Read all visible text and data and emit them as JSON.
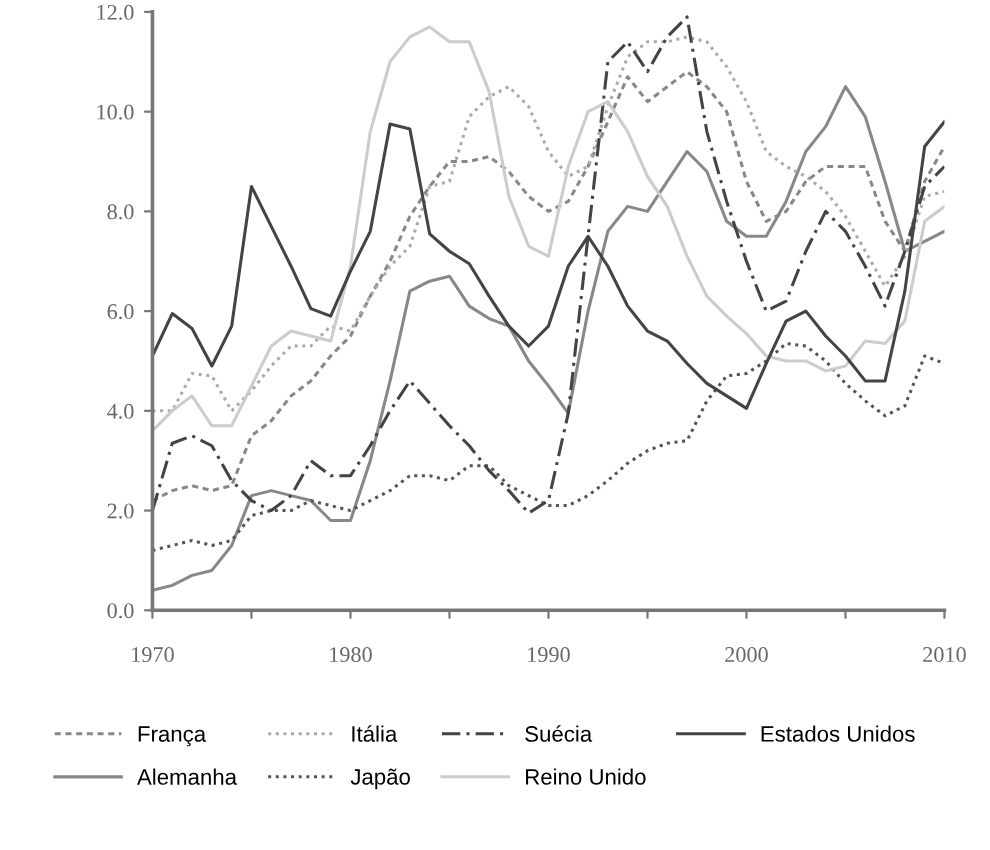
{
  "chart_data": {
    "type": "line",
    "x": [
      1970,
      1971,
      1972,
      1973,
      1974,
      1975,
      1976,
      1977,
      1978,
      1979,
      1980,
      1981,
      1982,
      1983,
      1984,
      1985,
      1986,
      1987,
      1988,
      1989,
      1990,
      1991,
      1992,
      1993,
      1994,
      1995,
      1996,
      1997,
      1998,
      1999,
      2000,
      2001,
      2002,
      2003,
      2004,
      2005,
      2006,
      2007,
      2008,
      2009,
      2010
    ],
    "series": [
      {
        "name": "França",
        "color": "#888888",
        "line_style": "dashed",
        "values": [
          2.2,
          2.4,
          2.5,
          2.4,
          2.5,
          3.5,
          3.8,
          4.3,
          4.6,
          5.1,
          5.5,
          6.3,
          7.0,
          7.9,
          8.5,
          9.0,
          9.0,
          9.1,
          8.8,
          8.3,
          8.0,
          8.2,
          8.9,
          9.8,
          10.7,
          10.2,
          10.5,
          10.8,
          10.5,
          10.0,
          8.6,
          7.8,
          8.0,
          8.6,
          8.9,
          8.9,
          8.9,
          7.8,
          7.2,
          8.6,
          9.3
        ]
      },
      {
        "name": "Alemanha",
        "color": "#888888",
        "line_style": "solid",
        "values": [
          0.4,
          0.5,
          0.7,
          0.8,
          1.3,
          2.3,
          2.4,
          2.3,
          2.2,
          1.8,
          1.8,
          3.0,
          4.6,
          6.4,
          6.6,
          6.7,
          6.1,
          5.85,
          5.7,
          5.0,
          4.5,
          3.95,
          6.0,
          7.6,
          8.1,
          8.0,
          8.6,
          9.2,
          8.8,
          7.8,
          7.5,
          7.5,
          8.2,
          9.2,
          9.7,
          10.5,
          9.9,
          8.6,
          7.2,
          7.4,
          7.6
        ]
      },
      {
        "name": "Itália",
        "color": "#aaaaaa",
        "line_style": "dotted",
        "values": [
          4.0,
          4.0,
          4.75,
          4.7,
          4.0,
          4.4,
          4.9,
          5.3,
          5.3,
          5.7,
          5.6,
          6.3,
          6.9,
          7.3,
          8.5,
          8.6,
          9.9,
          10.3,
          10.5,
          10.1,
          9.2,
          8.7,
          8.9,
          10.1,
          11.1,
          11.4,
          11.4,
          11.5,
          11.4,
          10.9,
          10.2,
          9.2,
          8.9,
          8.7,
          8.4,
          7.9,
          7.2,
          6.5,
          7.1,
          8.3,
          8.4
        ]
      },
      {
        "name": "Japão",
        "color": "#555555",
        "line_style": "dotted",
        "values": [
          1.2,
          1.3,
          1.4,
          1.3,
          1.4,
          1.9,
          2.0,
          2.0,
          2.2,
          2.1,
          2.0,
          2.2,
          2.4,
          2.7,
          2.7,
          2.6,
          2.9,
          2.9,
          2.5,
          2.3,
          2.1,
          2.1,
          2.3,
          2.6,
          2.95,
          3.2,
          3.35,
          3.4,
          4.2,
          4.7,
          4.75,
          5.0,
          5.35,
          5.3,
          5.0,
          4.55,
          4.2,
          3.9,
          4.1,
          5.1,
          4.95
        ]
      },
      {
        "name": "Suécia",
        "color": "#444444",
        "line_style": "dashdot",
        "values": [
          2.0,
          3.35,
          3.5,
          3.3,
          2.6,
          2.2,
          2.0,
          2.3,
          3.0,
          2.7,
          2.7,
          3.3,
          4.0,
          4.6,
          4.15,
          3.7,
          3.3,
          2.8,
          2.4,
          1.95,
          2.2,
          3.95,
          7.5,
          11.0,
          11.4,
          10.8,
          11.5,
          11.9,
          9.6,
          8.2,
          7.0,
          6.0,
          6.2,
          7.2,
          8.0,
          7.6,
          6.9,
          6.1,
          7.2,
          8.5,
          8.9
        ]
      },
      {
        "name": "Reino Unido",
        "color": "#cccccc",
        "line_style": "solid",
        "values": [
          3.6,
          4.0,
          4.3,
          3.7,
          3.7,
          4.5,
          5.3,
          5.6,
          5.5,
          5.4,
          6.9,
          9.6,
          11.0,
          11.5,
          11.7,
          11.4,
          11.4,
          10.4,
          8.3,
          7.3,
          7.1,
          8.9,
          10.0,
          10.2,
          9.6,
          8.7,
          8.1,
          7.1,
          6.3,
          5.9,
          5.55,
          5.1,
          5.0,
          5.0,
          4.8,
          4.9,
          5.4,
          5.35,
          5.8,
          7.8,
          8.1
        ]
      },
      {
        "name": "Estados Unidos",
        "color": "#444444",
        "line_style": "solid",
        "values": [
          5.1,
          5.95,
          5.65,
          4.9,
          5.7,
          8.5,
          7.7,
          6.9,
          6.05,
          5.9,
          6.8,
          7.6,
          9.75,
          9.65,
          7.55,
          7.2,
          6.95,
          6.3,
          5.7,
          5.3,
          5.7,
          6.9,
          7.5,
          6.9,
          6.1,
          5.6,
          5.4,
          4.95,
          4.55,
          4.3,
          4.05,
          4.95,
          5.8,
          6.0,
          5.5,
          5.1,
          4.6,
          4.6,
          6.4,
          9.3,
          9.8
        ]
      }
    ],
    "xlim": [
      1970,
      2010
    ],
    "xticks": [
      1970,
      {
        "value": 1975,
        "label": null
      },
      1980,
      {
        "value": 1985,
        "label": null
      },
      1990,
      {
        "value": 1995,
        "label": null
      },
      2000,
      {
        "value": 2005,
        "label": null
      },
      2010
    ],
    "ylim": [
      0,
      12
    ],
    "yticks": [
      {
        "value": 0,
        "label": "0.0"
      },
      {
        "value": 2,
        "label": "2.0"
      },
      {
        "value": 4,
        "label": "4.0"
      },
      {
        "value": 6,
        "label": "6.0"
      },
      {
        "value": 8,
        "label": "8.0"
      },
      {
        "value": 10,
        "label": "10.0"
      },
      {
        "value": 12,
        "label": "12.0"
      }
    ],
    "grid": false,
    "legend": "bottom",
    "marker": "none"
  }
}
